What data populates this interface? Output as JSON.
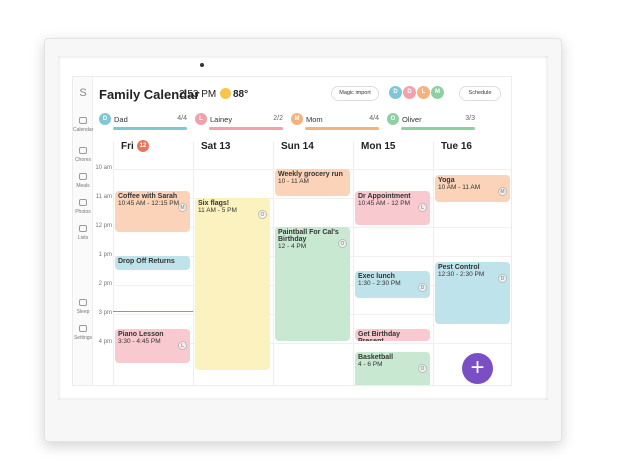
{
  "sidebar": {
    "logo": "S",
    "items": [
      "Calendar",
      "Chores",
      "Meals",
      "Photos",
      "Lists",
      "Sleep",
      "Settings"
    ]
  },
  "header": {
    "title": "Family Calendar",
    "time": "2:53 PM",
    "weather": "88°",
    "magic_import": "Magic import",
    "schedule": "Schedule",
    "avatars": [
      "D",
      "D",
      "L",
      "M"
    ]
  },
  "members": [
    {
      "avatar": "D",
      "name": "Dad",
      "count": "4/4"
    },
    {
      "avatar": "L",
      "name": "Lainey",
      "count": "2/2"
    },
    {
      "avatar": "M",
      "name": "Mom",
      "count": "4/4"
    },
    {
      "avatar": "O",
      "name": "Oliver",
      "count": "3/3"
    }
  ],
  "hours": [
    "10 am",
    "11 am",
    "12 pm",
    "1 pm",
    "2 pm",
    "3 pm",
    "4 pm"
  ],
  "days": [
    {
      "name": "Fri",
      "badge": "12",
      "events": [
        {
          "title": "Coffee with Sarah",
          "time": "10:45 AM - 12:15 PM",
          "avatar": "M"
        },
        {
          "title": "Drop Off Returns"
        },
        {
          "title": "Piano Lesson",
          "time": "3:30 - 4:45 PM",
          "avatar": "L"
        }
      ]
    },
    {
      "name": "Sat 13",
      "events": [
        {
          "title": "Six flags!",
          "time": "11 AM - 5 PM",
          "avatar": "O"
        }
      ]
    },
    {
      "name": "Sun 14",
      "events": [
        {
          "title": "Weekly grocery run",
          "time": "10 - 11 AM"
        },
        {
          "title": "Paintball For Cal's Birthday",
          "time": "12 - 4 PM",
          "avatar": "O"
        }
      ]
    },
    {
      "name": "Mon 15",
      "events": [
        {
          "title": "Dr Appointment",
          "time": "10:45 AM - 12 PM",
          "avatar": "L"
        },
        {
          "title": "Exec lunch",
          "time": "1:30 - 2:30 PM",
          "avatar": "D"
        },
        {
          "title": "Get Birthday Present..."
        },
        {
          "title": "Basketball",
          "time": "4 - 6 PM",
          "avatar": "O"
        }
      ]
    },
    {
      "name": "Tue 16",
      "events": [
        {
          "title": "Yoga",
          "time": "10 AM - 11 AM",
          "avatar": "M"
        },
        {
          "title": "Pest Control",
          "time": "12:30 - 2:30 PM",
          "avatar": "D"
        }
      ]
    }
  ]
}
